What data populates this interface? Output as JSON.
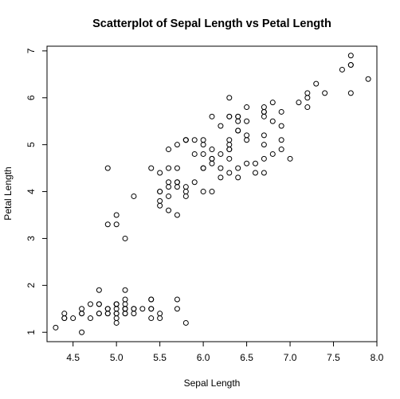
{
  "chart_data": {
    "type": "scatter",
    "title": "Scatterplot of Sepal Length vs Petal Length",
    "xlabel": "Sepal Length",
    "ylabel": "Petal Length",
    "xlim": [
      4.2,
      8.0
    ],
    "ylim": [
      0.8,
      7.1
    ],
    "xticks": [
      "4.5",
      "5.0",
      "5.5",
      "6.0",
      "6.5",
      "7.0",
      "7.5",
      "8.0"
    ],
    "yticks": [
      "1",
      "2",
      "3",
      "4",
      "5",
      "6",
      "7"
    ],
    "grid": false,
    "legend": "none",
    "point_color": "#000000",
    "x": [
      5.1,
      4.9,
      4.7,
      4.6,
      5.0,
      5.4,
      4.6,
      5.0,
      4.4,
      4.9,
      5.4,
      4.8,
      4.8,
      4.3,
      5.8,
      5.7,
      5.4,
      5.1,
      5.7,
      5.1,
      5.4,
      5.1,
      4.6,
      5.1,
      4.8,
      5.0,
      5.0,
      5.2,
      5.2,
      4.7,
      4.8,
      5.4,
      5.2,
      5.5,
      4.9,
      5.0,
      5.5,
      4.9,
      4.4,
      5.1,
      5.0,
      4.5,
      4.4,
      5.0,
      5.1,
      4.8,
      5.1,
      4.6,
      5.3,
      5.0,
      7.0,
      6.4,
      6.9,
      5.5,
      6.5,
      5.7,
      6.3,
      4.9,
      6.6,
      5.2,
      5.0,
      5.9,
      6.0,
      6.1,
      5.6,
      6.7,
      5.6,
      5.8,
      6.2,
      5.6,
      5.9,
      6.1,
      6.3,
      6.1,
      6.4,
      6.6,
      6.8,
      6.7,
      6.0,
      5.7,
      5.5,
      5.5,
      5.8,
      6.0,
      5.4,
      6.0,
      6.7,
      6.3,
      5.6,
      5.5,
      5.5,
      6.1,
      5.8,
      5.0,
      5.6,
      5.7,
      5.7,
      6.2,
      5.1,
      5.7,
      6.3,
      5.8,
      7.1,
      6.3,
      6.5,
      7.6,
      4.9,
      7.3,
      6.7,
      7.2,
      6.5,
      6.4,
      6.8,
      5.7,
      5.8,
      6.4,
      6.5,
      7.7,
      7.7,
      6.0,
      6.9,
      5.6,
      7.7,
      6.3,
      6.7,
      7.2,
      6.2,
      6.1,
      6.4,
      7.2,
      7.4,
      7.9,
      6.4,
      6.3,
      6.1,
      7.7,
      6.3,
      6.4,
      6.0,
      6.9,
      6.7,
      6.9,
      5.8,
      6.8,
      6.7,
      6.7,
      6.3,
      6.5,
      6.2,
      5.9
    ],
    "y": [
      1.4,
      1.4,
      1.3,
      1.5,
      1.4,
      1.7,
      1.4,
      1.5,
      1.4,
      1.5,
      1.5,
      1.6,
      1.4,
      1.1,
      1.2,
      1.5,
      1.3,
      1.4,
      1.7,
      1.5,
      1.7,
      1.5,
      1.0,
      1.7,
      1.9,
      1.6,
      1.6,
      1.5,
      1.4,
      1.6,
      1.6,
      1.5,
      1.5,
      1.4,
      1.5,
      1.2,
      1.3,
      1.4,
      1.3,
      1.5,
      1.3,
      1.3,
      1.3,
      1.6,
      1.9,
      1.4,
      1.6,
      1.4,
      1.5,
      1.4,
      4.7,
      4.5,
      4.9,
      4.0,
      4.6,
      4.5,
      4.7,
      3.3,
      4.6,
      3.9,
      3.5,
      4.2,
      4.0,
      4.7,
      3.6,
      4.4,
      4.5,
      4.1,
      4.5,
      3.9,
      4.8,
      4.0,
      4.9,
      4.7,
      4.3,
      4.4,
      4.8,
      5.0,
      4.5,
      3.5,
      3.8,
      3.7,
      3.9,
      5.1,
      4.5,
      4.5,
      4.7,
      4.4,
      4.1,
      4.0,
      4.4,
      4.6,
      4.0,
      3.3,
      4.2,
      4.2,
      4.2,
      4.3,
      3.0,
      4.1,
      6.0,
      5.1,
      5.9,
      5.6,
      5.8,
      6.6,
      4.5,
      6.3,
      5.8,
      6.1,
      5.1,
      5.3,
      5.5,
      5.0,
      5.1,
      5.3,
      5.5,
      6.7,
      6.9,
      5.0,
      5.7,
      4.9,
      6.7,
      4.9,
      5.7,
      6.0,
      4.8,
      4.9,
      5.6,
      5.8,
      6.1,
      6.4,
      5.6,
      5.1,
      5.6,
      6.1,
      5.6,
      5.5,
      4.8,
      5.4,
      5.6,
      5.1,
      5.1,
      5.9,
      5.7,
      5.2,
      5.0,
      5.2,
      5.4,
      5.1
    ]
  }
}
